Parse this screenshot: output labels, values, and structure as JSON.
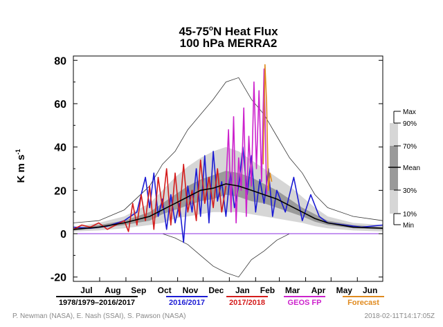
{
  "title_main": "45-75",
  "title_degree": "o",
  "title_rest": "N Heat Flux",
  "subtitle": "100 hPa   MERRA2",
  "ylabel_main": "K m s",
  "ylabel_sup": "-1",
  "credits_left": "P. Newman (NASA), E. Nash (SSAI), S. Pawson (NASA)",
  "credits_right": "2018-02-11T14:17:05Z",
  "colors": {
    "climo": "#333333",
    "y2016": "#1b1bd4",
    "y2017": "#d41b1b",
    "geos": "#cc22cc",
    "forecast": "#e08a1e",
    "mean": "#000000",
    "band_outer": "#d6d6d6",
    "band_inner": "#9a9a9a",
    "purple_line": "#8a2be2"
  },
  "chart_data": {
    "type": "line",
    "title": "45-75°N Heat Flux",
    "subtitle": "100 hPa MERRA2",
    "ylabel": "K m s-1",
    "ylim": [
      -22,
      82
    ],
    "yticks": [
      -20,
      0,
      20,
      40,
      60,
      80
    ],
    "months": [
      "Jul",
      "Aug",
      "Sep",
      "Oct",
      "Nov",
      "Dec",
      "Jan",
      "Feb",
      "Mar",
      "Apr",
      "May",
      "Jun"
    ],
    "x_unit": "day of year starting Jul 1",
    "x_range": [
      0,
      365
    ],
    "legend": [
      {
        "label": "1978/1979–2016/2017",
        "color": "#000000"
      },
      {
        "label": "2016/2017",
        "color": "#1b1bd4"
      },
      {
        "label": "2017/2018",
        "color": "#d41b1b"
      },
      {
        "label": "GEOS FP",
        "color": "#cc22cc"
      },
      {
        "label": "Forecast",
        "color": "#e08a1e"
      }
    ],
    "percentile_labels": [
      "Max",
      "90%",
      "70%",
      "Mean",
      "30%",
      "10%",
      "Min"
    ],
    "x_knots": [
      0,
      30,
      60,
      90,
      105,
      120,
      135,
      150,
      165,
      180,
      195,
      210,
      225,
      240,
      255,
      270,
      285,
      300,
      330,
      365
    ],
    "climatology": {
      "max": [
        5,
        6,
        11,
        22,
        32,
        38,
        48,
        55,
        62,
        70,
        72,
        62,
        55,
        45,
        35,
        28,
        18,
        12,
        8,
        6
      ],
      "p90": [
        3,
        5,
        8,
        14,
        20,
        26,
        31,
        35,
        38,
        40,
        38,
        34,
        30,
        26,
        22,
        17,
        12,
        8,
        5,
        4
      ],
      "p70": [
        2.5,
        4,
        6,
        10,
        14,
        18,
        22,
        25,
        27,
        29,
        28,
        26,
        23,
        20,
        16,
        12,
        9,
        6,
        4,
        3
      ],
      "mean": [
        2,
        3,
        5,
        8,
        11,
        14,
        17,
        20,
        21,
        23,
        22,
        20,
        18,
        16,
        13,
        10,
        7,
        5,
        3,
        2.5
      ],
      "p30": [
        1.5,
        2.5,
        4,
        6,
        9,
        11,
        13,
        15,
        16,
        18,
        17,
        15,
        14,
        12,
        10,
        8,
        5.5,
        4,
        2.5,
        2
      ],
      "p10": [
        1,
        1.5,
        2.5,
        4,
        5,
        7,
        8,
        9,
        10,
        10,
        10,
        9,
        8,
        7,
        6,
        5,
        3.5,
        2.5,
        1.5,
        1
      ],
      "min": [
        0,
        0,
        0,
        0,
        0,
        -2,
        -5,
        -10,
        -15,
        -18,
        -20,
        -12,
        -8,
        -3,
        0,
        0,
        0,
        0,
        0,
        0
      ]
    },
    "series": [
      {
        "name": "2016/2017",
        "color": "#1b1bd4",
        "x": [
          0,
          20,
          40,
          60,
          75,
          85,
          90,
          95,
          100,
          105,
          110,
          115,
          120,
          125,
          130,
          135,
          140,
          145,
          150,
          155,
          160,
          165,
          170,
          175,
          180,
          185,
          190,
          195,
          200,
          205,
          210,
          215,
          220,
          225,
          230,
          235,
          240,
          250,
          260,
          270,
          280,
          290,
          300,
          320,
          340,
          365
        ],
        "y": [
          3,
          2.5,
          3.5,
          6,
          10,
          26,
          12,
          28,
          8,
          16,
          2,
          18,
          5,
          14,
          -4,
          22,
          10,
          30,
          8,
          36,
          5,
          38,
          15,
          24,
          8,
          28,
          12,
          22,
          40,
          18,
          36,
          10,
          25,
          14,
          30,
          8,
          20,
          10,
          26,
          6,
          18,
          8,
          5,
          4,
          3,
          4
        ]
      },
      {
        "name": "2017/2018",
        "color": "#d41b1b",
        "x": [
          0,
          10,
          20,
          30,
          40,
          50,
          60,
          65,
          70,
          75,
          80,
          85,
          90,
          95,
          100,
          105,
          110,
          115,
          120,
          125,
          130,
          135,
          140,
          145,
          150,
          155,
          160,
          165,
          170,
          175,
          180
        ],
        "y": [
          2,
          4,
          3,
          5,
          2,
          4,
          6,
          1,
          14,
          4,
          18,
          6,
          22,
          2,
          26,
          12,
          30,
          4,
          28,
          8,
          32,
          10,
          20,
          6,
          34,
          14,
          26,
          12,
          30,
          10,
          22
        ]
      },
      {
        "name": "GEOS FP",
        "color": "#cc22cc",
        "x": [
          180,
          183,
          186,
          189,
          192,
          195,
          198,
          201,
          204,
          207,
          210,
          213,
          216,
          219,
          222,
          225,
          228
        ],
        "y": [
          22,
          48,
          10,
          54,
          5,
          35,
          20,
          58,
          8,
          45,
          22,
          70,
          30,
          66,
          24,
          76,
          18
        ]
      },
      {
        "name": "Forecast",
        "color": "#e08a1e",
        "x": [
          224,
          226,
          228,
          230,
          232,
          234
        ],
        "y": [
          32,
          78,
          60,
          20,
          28,
          24
        ]
      }
    ]
  }
}
